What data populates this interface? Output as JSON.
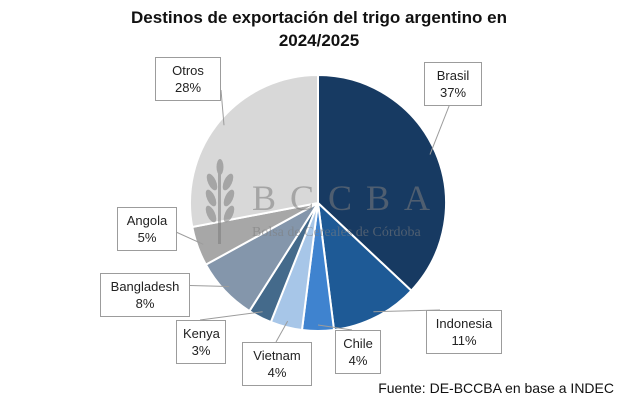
{
  "chart_data": {
    "type": "pie",
    "title_line1": "Destinos de exportación del trigo argentino en",
    "title_line2": "2024/2025",
    "slices": [
      {
        "label": "Brasil",
        "pct_text": "37%",
        "value": 37,
        "color": "#173a62"
      },
      {
        "label": "Indonesia",
        "pct_text": "11%",
        "value": 11,
        "color": "#1e5a96"
      },
      {
        "label": "Chile",
        "pct_text": "4%",
        "value": 4,
        "color": "#3f83cf"
      },
      {
        "label": "Vietnam",
        "pct_text": "4%",
        "value": 4,
        "color": "#a7c6e8"
      },
      {
        "label": "Kenya",
        "pct_text": "3%",
        "value": 3,
        "color": "#446a8b"
      },
      {
        "label": "Bangladesh",
        "pct_text": "8%",
        "value": 8,
        "color": "#8496ab"
      },
      {
        "label": "Angola",
        "pct_text": "5%",
        "value": 5,
        "color": "#a7a7a7"
      },
      {
        "label": "Otros",
        "pct_text": "28%",
        "value": 28,
        "color": "#d8d8d8"
      }
    ]
  },
  "watermark": {
    "name": "BCCBA",
    "subtitle": "Bolsa de Cereales de Córdoba"
  },
  "source": "Fuente: DE-BCCBA en base a INDEC"
}
